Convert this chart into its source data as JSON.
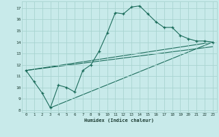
{
  "title": "",
  "xlabel": "Humidex (Indice chaleur)",
  "bg_color": "#c8eaea",
  "grid_color": "#a8d4d0",
  "line_color": "#1a6b5a",
  "xlim": [
    -0.5,
    23.5
  ],
  "ylim": [
    7.8,
    17.6
  ],
  "xticks": [
    0,
    1,
    2,
    3,
    4,
    5,
    6,
    7,
    8,
    9,
    10,
    11,
    12,
    13,
    14,
    15,
    16,
    17,
    18,
    19,
    20,
    21,
    22,
    23
  ],
  "yticks": [
    8,
    9,
    10,
    11,
    12,
    13,
    14,
    15,
    16,
    17
  ],
  "curve1_x": [
    0,
    1,
    2,
    3,
    4,
    5,
    6,
    7,
    8,
    9,
    10,
    11,
    12,
    13,
    14,
    15,
    16,
    17,
    18,
    19,
    20,
    21,
    22,
    23
  ],
  "curve1_y": [
    11.5,
    10.5,
    9.5,
    8.2,
    10.2,
    10.0,
    9.6,
    11.5,
    12.0,
    13.2,
    14.8,
    16.6,
    16.5,
    17.1,
    17.2,
    16.5,
    15.8,
    15.3,
    15.3,
    14.6,
    14.3,
    14.1,
    14.1,
    14.0
  ],
  "line1_x": [
    0,
    23
  ],
  "line1_y": [
    11.5,
    14.0
  ],
  "line2_x": [
    3,
    23
  ],
  "line2_y": [
    8.2,
    14.0
  ],
  "line3_x": [
    0,
    23
  ],
  "line3_y": [
    11.5,
    13.6
  ]
}
